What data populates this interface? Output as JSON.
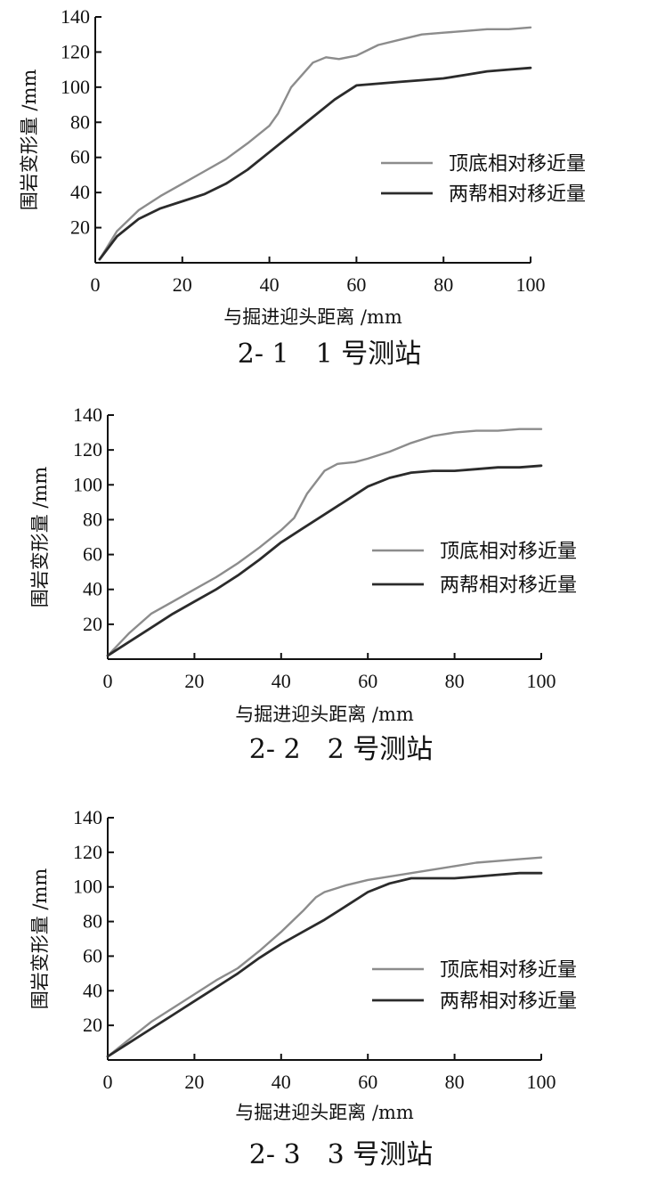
{
  "chart_data": [
    {
      "type": "line",
      "caption": "2- 1　1 号测站",
      "xlabel": "与掘进迎头距离 /mm",
      "ylabel": "围岩变形量 /mm",
      "xlim": [
        0,
        100
      ],
      "ylim": [
        0,
        140
      ],
      "xticks": [
        "0",
        "20",
        "40",
        "60",
        "80",
        "100"
      ],
      "yticks": [
        "20",
        "40",
        "60",
        "80",
        "100",
        "120",
        "140"
      ],
      "legend_position": "center-right",
      "series": [
        {
          "name": "顶底相对移近量",
          "color": "#8c8c8c",
          "x": [
            1,
            5,
            10,
            15,
            20,
            25,
            30,
            35,
            40,
            42,
            45,
            50,
            53,
            56,
            60,
            65,
            70,
            75,
            80,
            85,
            90,
            95,
            100
          ],
          "y": [
            2,
            18,
            30,
            38,
            45,
            52,
            59,
            68,
            78,
            85,
            100,
            114,
            117,
            116,
            118,
            124,
            127,
            130,
            131,
            132,
            133,
            133,
            134
          ]
        },
        {
          "name": "两帮相对移近量",
          "color": "#2b2b2b",
          "x": [
            1,
            5,
            10,
            15,
            20,
            25,
            30,
            35,
            40,
            45,
            50,
            55,
            60,
            65,
            70,
            75,
            80,
            85,
            90,
            95,
            100
          ],
          "y": [
            2,
            15,
            25,
            31,
            35,
            39,
            45,
            53,
            63,
            73,
            83,
            93,
            101,
            102,
            103,
            104,
            105,
            107,
            109,
            110,
            111
          ]
        }
      ]
    },
    {
      "type": "line",
      "caption": "2- 2　2 号测站",
      "xlabel": "与掘进迎头距离 /mm",
      "ylabel": "围岩变形量 /mm",
      "xlim": [
        0,
        100
      ],
      "ylim": [
        0,
        140
      ],
      "xticks": [
        "0",
        "20",
        "40",
        "60",
        "80",
        "100"
      ],
      "yticks": [
        "20",
        "40",
        "60",
        "80",
        "100",
        "120",
        "140"
      ],
      "legend_position": "center-right",
      "series": [
        {
          "name": "顶底相对移近量",
          "color": "#8c8c8c",
          "x": [
            0,
            5,
            10,
            15,
            20,
            25,
            30,
            35,
            40,
            43,
            46,
            50,
            53,
            57,
            60,
            65,
            70,
            75,
            80,
            85,
            90,
            95,
            100
          ],
          "y": [
            2,
            15,
            26,
            33,
            40,
            47,
            55,
            64,
            74,
            81,
            95,
            108,
            112,
            113,
            115,
            119,
            124,
            128,
            130,
            131,
            131,
            132,
            132
          ]
        },
        {
          "name": "两帮相对移近量",
          "color": "#2b2b2b",
          "x": [
            0,
            5,
            10,
            15,
            20,
            25,
            30,
            35,
            40,
            45,
            50,
            55,
            60,
            65,
            70,
            75,
            80,
            85,
            90,
            95,
            100
          ],
          "y": [
            2,
            10,
            18,
            26,
            33,
            40,
            48,
            57,
            67,
            75,
            83,
            91,
            99,
            104,
            107,
            108,
            108,
            109,
            110,
            110,
            111
          ]
        }
      ]
    },
    {
      "type": "line",
      "caption": "2- 3　3 号测站",
      "xlabel": "与掘进迎头距离 /mm",
      "ylabel": "围岩变形量 /mm",
      "xlim": [
        0,
        100
      ],
      "ylim": [
        0,
        140
      ],
      "xticks": [
        "0",
        "20",
        "40",
        "60",
        "80",
        "100"
      ],
      "yticks": [
        "20",
        "40",
        "60",
        "80",
        "100",
        "120",
        "140"
      ],
      "legend_position": "center-right",
      "series": [
        {
          "name": "顶底相对移近量",
          "color": "#8c8c8c",
          "x": [
            0,
            5,
            10,
            15,
            20,
            25,
            30,
            35,
            40,
            45,
            48,
            50,
            55,
            60,
            65,
            70,
            75,
            80,
            85,
            90,
            95,
            100
          ],
          "y": [
            2,
            12,
            22,
            30,
            38,
            46,
            53,
            63,
            74,
            86,
            94,
            97,
            101,
            104,
            106,
            108,
            110,
            112,
            114,
            115,
            116,
            117
          ]
        },
        {
          "name": "两帮相对移近量",
          "color": "#2b2b2b",
          "x": [
            0,
            5,
            10,
            15,
            20,
            25,
            30,
            35,
            40,
            45,
            50,
            55,
            60,
            65,
            70,
            75,
            80,
            85,
            90,
            95,
            100
          ],
          "y": [
            2,
            10,
            18,
            26,
            34,
            42,
            50,
            59,
            67,
            74,
            81,
            89,
            97,
            102,
            105,
            105,
            105,
            106,
            107,
            108,
            108
          ]
        }
      ]
    }
  ]
}
